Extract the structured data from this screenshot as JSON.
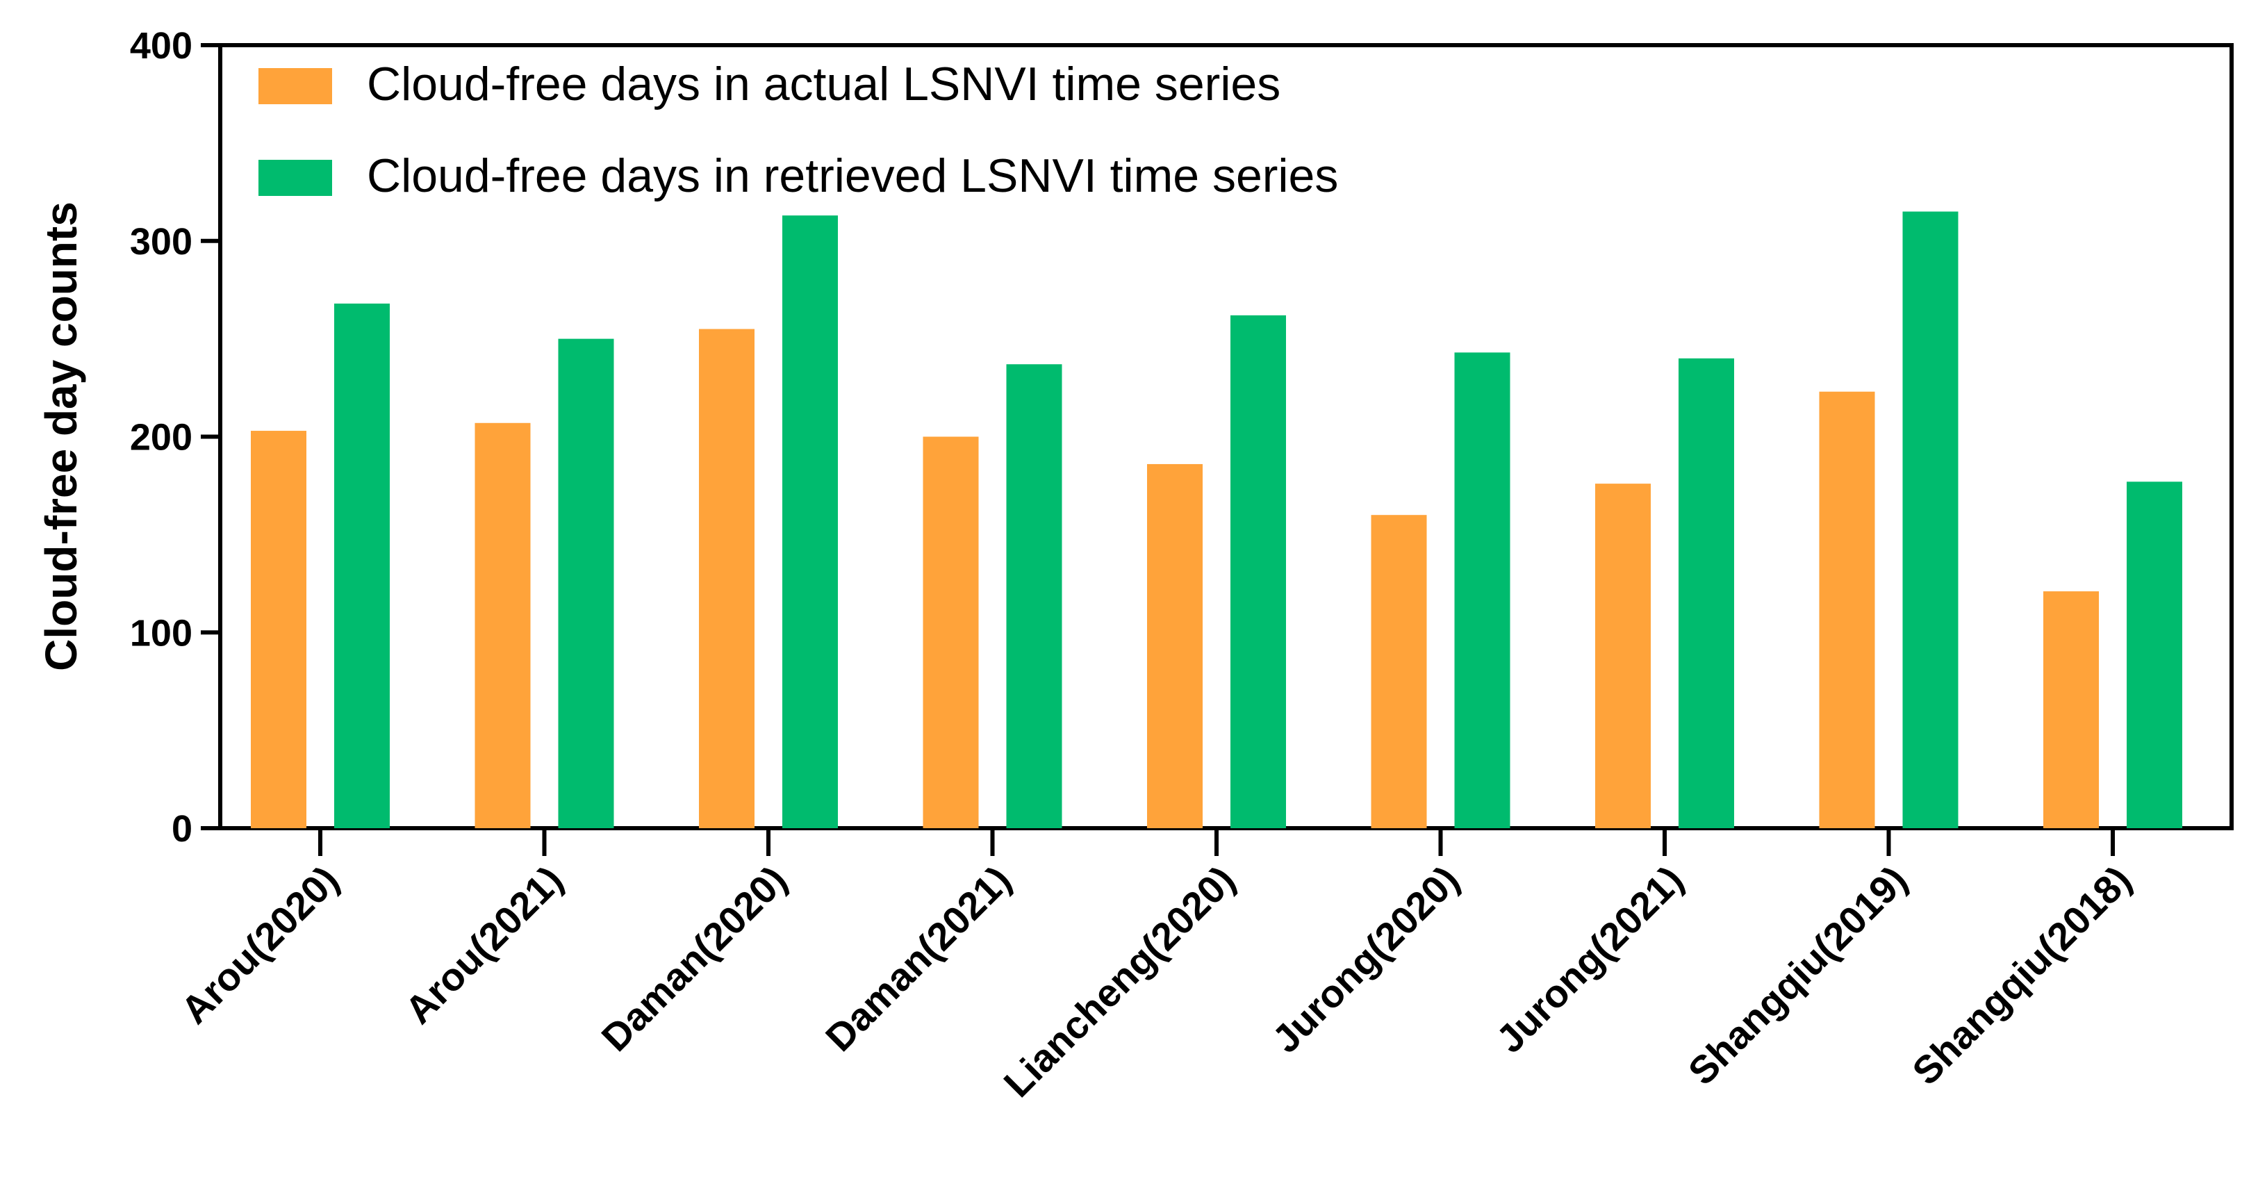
{
  "chart_data": {
    "type": "bar",
    "title": "",
    "xlabel": "",
    "ylabel": "Cloud-free day counts",
    "ylim": [
      0,
      400
    ],
    "yticks": [
      0,
      100,
      200,
      300,
      400
    ],
    "grid": false,
    "legend_position": "top-left",
    "categories": [
      "Arou(2020)",
      "Arou(2021)",
      "Daman(2020)",
      "Daman(2021)",
      "Liancheng(2020)",
      "Jurong(2020)",
      "Jurong(2021)",
      "Shangqiu(2019)",
      "Shangqiu(2018)"
    ],
    "series": [
      {
        "name": "Cloud-free days in actual LSNVI time series",
        "color": "#FFA33A",
        "values": [
          203,
          207,
          255,
          200,
          186,
          160,
          176,
          223,
          121
        ]
      },
      {
        "name": "Cloud-free days in retrieved LSNVI time series",
        "color": "#00BB6E",
        "values": [
          268,
          250,
          313,
          237,
          262,
          243,
          240,
          315,
          177
        ]
      }
    ]
  }
}
